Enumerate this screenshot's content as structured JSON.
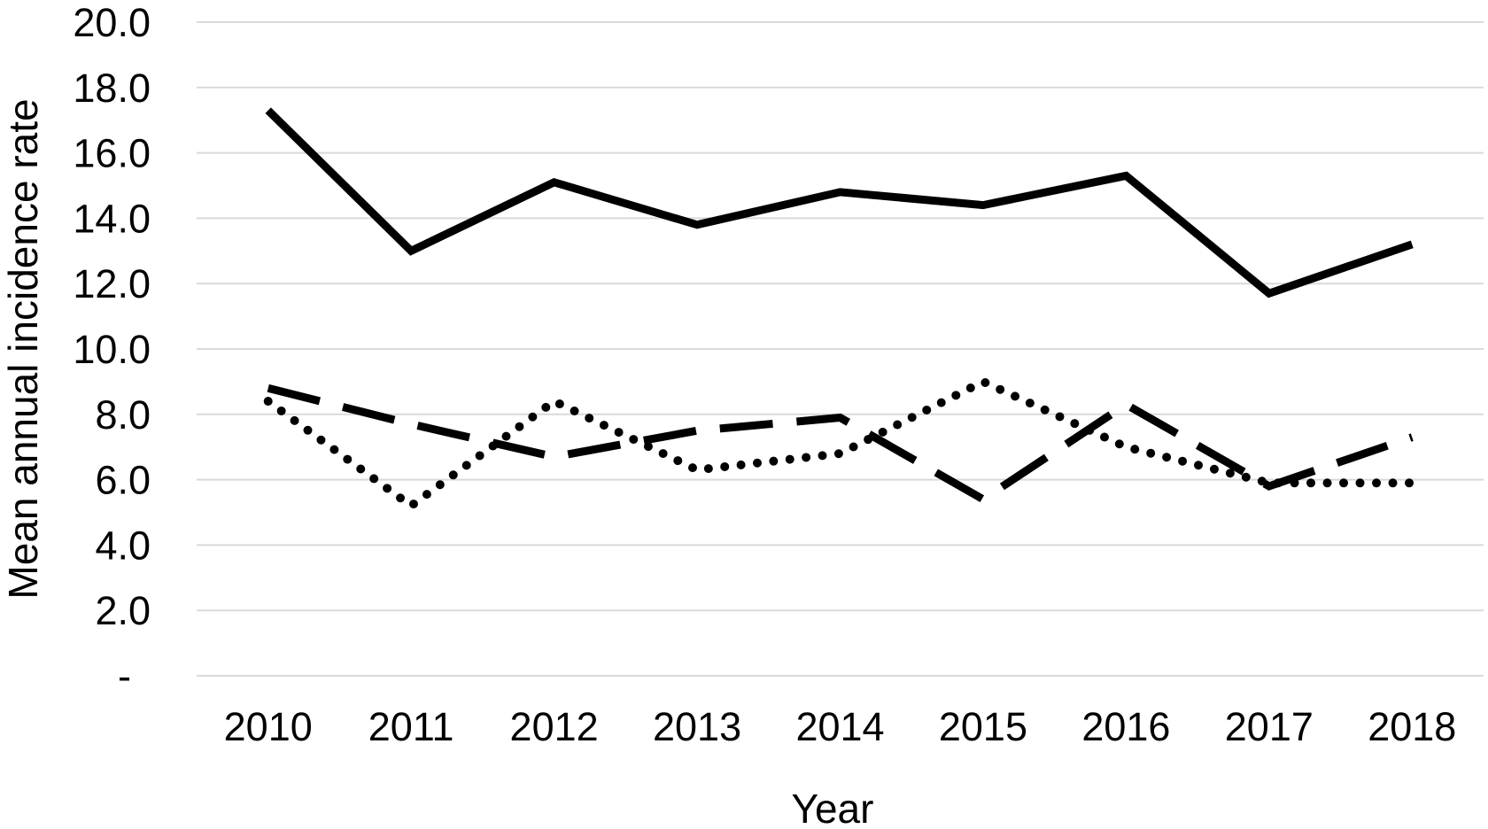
{
  "chart_data": {
    "type": "line",
    "title": "",
    "xlabel": "Year",
    "ylabel": "Mean annual incidence rate",
    "x_categories": [
      "2010",
      "2011",
      "2012",
      "2013",
      "2014",
      "2015",
      "2016",
      "2017",
      "2018"
    ],
    "ylim": [
      0,
      20
    ],
    "y_ticks": [
      {
        "label": "20.0",
        "value": 20
      },
      {
        "label": "18.0",
        "value": 18
      },
      {
        "label": "16.0",
        "value": 16
      },
      {
        "label": "14.0",
        "value": 14
      },
      {
        "label": "12.0",
        "value": 12
      },
      {
        "label": "10.0",
        "value": 10
      },
      {
        "label": "8.0",
        "value": 8
      },
      {
        "label": "6.0",
        "value": 6
      },
      {
        "label": "4.0",
        "value": 4
      },
      {
        "label": "2.0",
        "value": 2
      },
      {
        "label": "-",
        "value": 0
      }
    ],
    "grid": true,
    "legend": "none",
    "gridline_color": "#d9d9d9",
    "text_color": "#000000",
    "background_color": "#ffffff",
    "series": [
      {
        "line_style": "solid",
        "color": "#000000",
        "values": [
          17.3,
          13.0,
          15.1,
          13.8,
          14.8,
          14.4,
          15.3,
          11.7,
          13.2
        ]
      },
      {
        "line_style": "dashed",
        "color": "#000000",
        "values": [
          8.8,
          7.7,
          6.7,
          7.5,
          7.9,
          5.4,
          8.3,
          5.8,
          7.3
        ]
      },
      {
        "line_style": "dotted",
        "color": "#000000",
        "values": [
          8.4,
          5.2,
          8.4,
          6.3,
          6.8,
          9.0,
          7.0,
          5.9,
          5.9
        ]
      }
    ]
  }
}
